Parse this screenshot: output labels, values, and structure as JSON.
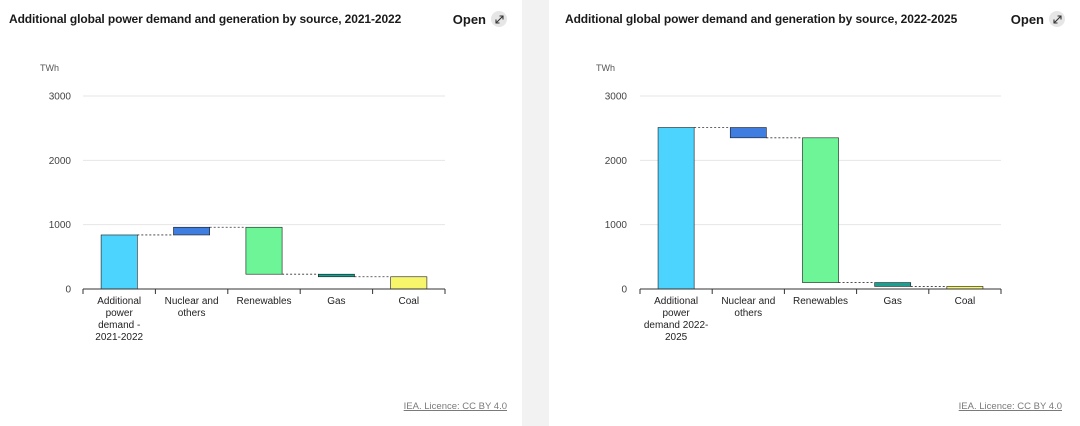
{
  "charts": [
    {
      "title": "Additional global power demand and generation by source, 2021-2022",
      "open_label": "Open",
      "unit": "TWh",
      "licence": "IEA. Licence: CC BY 4.0",
      "chart_data": {
        "type": "waterfall",
        "title": "Additional global power demand and generation by source, 2021-2022",
        "ylabel": "TWh",
        "ylim": [
          0,
          3000
        ],
        "yticks": [
          0,
          1000,
          2000,
          3000
        ],
        "categories": [
          [
            "Additional",
            "power",
            "demand -",
            "2021-2022"
          ],
          [
            "Nuclear and",
            "others"
          ],
          [
            "Renewables"
          ],
          [
            "Gas"
          ],
          [
            "Coal"
          ]
        ],
        "bars": [
          {
            "name": "Additional power demand - 2021-2022",
            "start": 0,
            "end": 840,
            "color": "#4cd4ff"
          },
          {
            "name": "Nuclear and others",
            "start": 840,
            "end": 960,
            "color": "#3f7ee0"
          },
          {
            "name": "Renewables",
            "start": 960,
            "end": 230,
            "color": "#6df598"
          },
          {
            "name": "Gas",
            "start": 230,
            "end": 190,
            "color": "#1aa090"
          },
          {
            "name": "Coal",
            "start": 190,
            "end": 0,
            "color": "#f7f56a"
          }
        ]
      }
    },
    {
      "title": "Additional global power demand and generation by source, 2022-2025",
      "open_label": "Open",
      "unit": "TWh",
      "licence": "IEA. Licence: CC BY 4.0",
      "chart_data": {
        "type": "waterfall",
        "title": "Additional global power demand and generation by source, 2022-2025",
        "ylabel": "TWh",
        "ylim": [
          0,
          3000
        ],
        "yticks": [
          0,
          1000,
          2000,
          3000
        ],
        "categories": [
          [
            "Additional",
            "power",
            "demand 2022-",
            "2025"
          ],
          [
            "Nuclear and",
            "others"
          ],
          [
            "Renewables"
          ],
          [
            "Gas"
          ],
          [
            "Coal"
          ]
        ],
        "bars": [
          {
            "name": "Additional power demand 2022-2025",
            "start": 0,
            "end": 2510,
            "color": "#4cd4ff"
          },
          {
            "name": "Nuclear and others",
            "start": 2510,
            "end": 2350,
            "color": "#3f7ee0"
          },
          {
            "name": "Renewables",
            "start": 2350,
            "end": 100,
            "color": "#6df598"
          },
          {
            "name": "Gas",
            "start": 100,
            "end": 40,
            "color": "#1aa090"
          },
          {
            "name": "Coal",
            "start": 40,
            "end": 0,
            "color": "#f7f56a"
          }
        ]
      }
    }
  ]
}
